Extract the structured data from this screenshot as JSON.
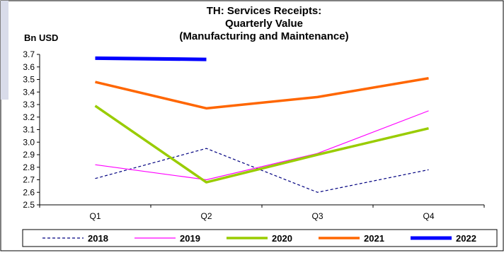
{
  "chart_data": {
    "type": "line",
    "title_lines": [
      "TH: Services Receipts:",
      "Quarterly Value",
      "(Manufacturing and Maintenance)"
    ],
    "ylabel": "Bn USD",
    "categories": [
      "Q1",
      "Q2",
      "Q3",
      "Q4"
    ],
    "ylim": [
      2.5,
      3.7
    ],
    "yticks": [
      "2.5",
      "2.6",
      "2.7",
      "2.8",
      "2.9",
      "3.0",
      "3.1",
      "3.2",
      "3.3",
      "3.4",
      "3.5",
      "3.6",
      "3.7"
    ],
    "grid": false,
    "legend_position": "bottom",
    "series": [
      {
        "name": "2018",
        "values": [
          2.71,
          2.95,
          2.6,
          2.78
        ],
        "color": "#000080",
        "style": "dashed",
        "weight": "thin"
      },
      {
        "name": "2019",
        "values": [
          2.82,
          2.7,
          2.91,
          3.25
        ],
        "color": "#ff00ff",
        "style": "solid",
        "weight": "thin"
      },
      {
        "name": "2020",
        "values": [
          3.29,
          2.68,
          2.9,
          3.11
        ],
        "color": "#99cc00",
        "style": "solid",
        "weight": "thick"
      },
      {
        "name": "2021",
        "values": [
          3.48,
          3.27,
          3.36,
          3.51
        ],
        "color": "#ff6600",
        "style": "solid",
        "weight": "thick"
      },
      {
        "name": "2022",
        "values": [
          3.67,
          3.66,
          null,
          null
        ],
        "color": "#0000ff",
        "style": "solid",
        "weight": "thick"
      }
    ]
  }
}
